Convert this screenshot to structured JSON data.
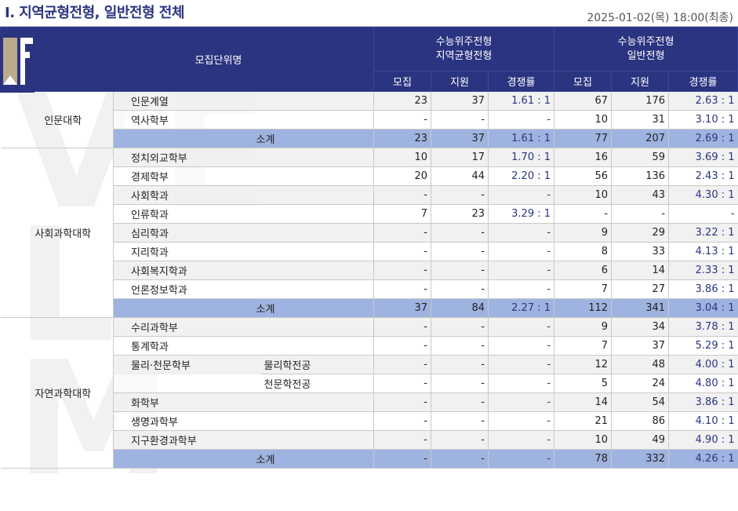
{
  "header": {
    "title": "Ⅰ. 지역균형전형, 일반전형 전체",
    "timestamp": "2025-01-02(목) 18:00(최종)"
  },
  "table": {
    "unit_header": "모집단위명",
    "group_a": "수능위주전형\n지역균형전형",
    "group_b": "수능위주전형\n일반전형",
    "cols": [
      "모집",
      "지원",
      "경쟁률",
      "모집",
      "지원",
      "경쟁률"
    ],
    "colleges": [
      {
        "name": "인문대학",
        "rows": [
          {
            "dept": "인문계열",
            "major": "",
            "a": [
              "23",
              "37",
              "1.61 : 1"
            ],
            "b": [
              "67",
              "176",
              "2.63 : 1"
            ]
          },
          {
            "dept": "역사학부",
            "major": "",
            "a": [
              "-",
              "-",
              "-"
            ],
            "b": [
              "10",
              "31",
              "3.10 : 1"
            ]
          }
        ],
        "subtotal": {
          "label": "소계",
          "a": [
            "23",
            "37",
            "1.61 : 1"
          ],
          "b": [
            "77",
            "207",
            "2.69 : 1"
          ]
        }
      },
      {
        "name": "사회과학대학",
        "rows": [
          {
            "dept": "정치외교학부",
            "major": "",
            "a": [
              "10",
              "17",
              "1.70 : 1"
            ],
            "b": [
              "16",
              "59",
              "3.69 : 1"
            ]
          },
          {
            "dept": "경제학부",
            "major": "",
            "a": [
              "20",
              "44",
              "2.20 : 1"
            ],
            "b": [
              "56",
              "136",
              "2.43 : 1"
            ]
          },
          {
            "dept": "사회학과",
            "major": "",
            "a": [
              "-",
              "-",
              "-"
            ],
            "b": [
              "10",
              "43",
              "4.30 : 1"
            ]
          },
          {
            "dept": "인류학과",
            "major": "",
            "a": [
              "7",
              "23",
              "3.29 : 1"
            ],
            "b": [
              "-",
              "-",
              "-"
            ]
          },
          {
            "dept": "심리학과",
            "major": "",
            "a": [
              "-",
              "-",
              "-"
            ],
            "b": [
              "9",
              "29",
              "3.22 : 1"
            ]
          },
          {
            "dept": "지리학과",
            "major": "",
            "a": [
              "-",
              "-",
              "-"
            ],
            "b": [
              "8",
              "33",
              "4.13 : 1"
            ]
          },
          {
            "dept": "사회복지학과",
            "major": "",
            "a": [
              "-",
              "-",
              "-"
            ],
            "b": [
              "6",
              "14",
              "2.33 : 1"
            ]
          },
          {
            "dept": "언론정보학과",
            "major": "",
            "a": [
              "-",
              "-",
              "-"
            ],
            "b": [
              "7",
              "27",
              "3.86 : 1"
            ]
          }
        ],
        "subtotal": {
          "label": "소계",
          "a": [
            "37",
            "84",
            "2.27 : 1"
          ],
          "b": [
            "112",
            "341",
            "3.04 : 1"
          ]
        }
      },
      {
        "name": "자연과학대학",
        "rows": [
          {
            "dept": "수리과학부",
            "major": "",
            "a": [
              "-",
              "-",
              "-"
            ],
            "b": [
              "9",
              "34",
              "3.78 : 1"
            ]
          },
          {
            "dept": "통계학과",
            "major": "",
            "a": [
              "-",
              "-",
              "-"
            ],
            "b": [
              "7",
              "37",
              "5.29 : 1"
            ]
          },
          {
            "dept": "물리·천문학부",
            "major": "물리학전공",
            "a": [
              "-",
              "-",
              "-"
            ],
            "b": [
              "12",
              "48",
              "4.00 : 1"
            ]
          },
          {
            "dept": "",
            "major": "천문학전공",
            "a": [
              "-",
              "-",
              "-"
            ],
            "b": [
              "5",
              "24",
              "4.80 : 1"
            ]
          },
          {
            "dept": "화학부",
            "major": "",
            "a": [
              "-",
              "-",
              "-"
            ],
            "b": [
              "14",
              "54",
              "3.86 : 1"
            ]
          },
          {
            "dept": "생명과학부",
            "major": "",
            "a": [
              "-",
              "-",
              "-"
            ],
            "b": [
              "21",
              "86",
              "4.10 : 1"
            ]
          },
          {
            "dept": "지구환경과학부",
            "major": "",
            "a": [
              "-",
              "-",
              "-"
            ],
            "b": [
              "10",
              "49",
              "4.90 : 1"
            ]
          }
        ],
        "subtotal": {
          "label": "소계",
          "a": [
            "-",
            "-",
            "-"
          ],
          "b": [
            "78",
            "332",
            "4.26 : 1"
          ]
        }
      }
    ]
  }
}
